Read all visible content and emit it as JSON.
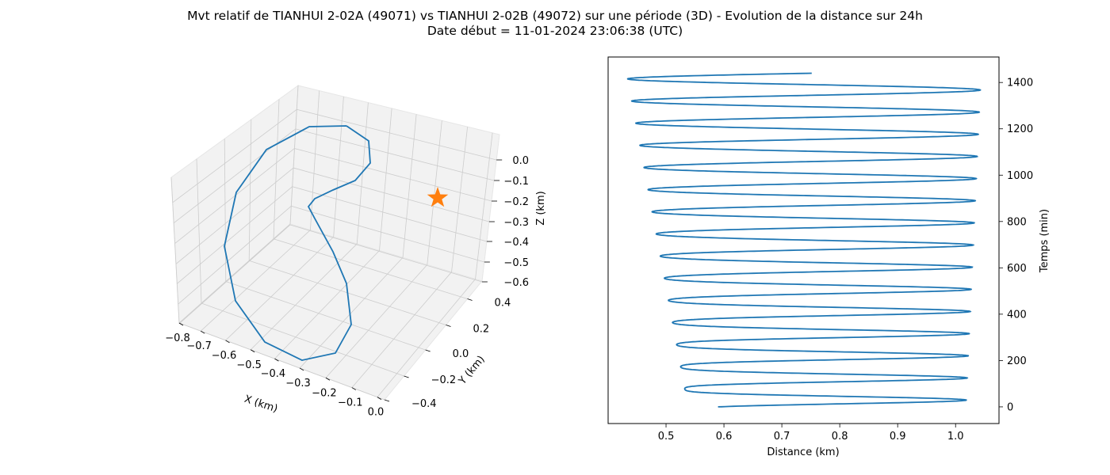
{
  "title_line1": "Mvt relatif de TIANHUI 2-02A (49071) vs TIANHUI 2-02B (49072) sur une période (3D) - Evolution de la distance sur 24h",
  "title_line2": "Date début = 11-01-2024 23:06:38 (UTC)",
  "colors": {
    "series": "#1f77b4",
    "marker": "#ff7f0e",
    "pane": "#f2f2f2",
    "grid": "#cccccc"
  },
  "chart_data": [
    {
      "type": "line",
      "projection": "3d",
      "xlabel": "X (km)",
      "ylabel": "Y (km)",
      "zlabel": "Z (km)",
      "xticks": [
        "−0.8",
        "−0.7",
        "−0.6",
        "−0.5",
        "−0.4",
        "−0.3",
        "−0.2",
        "−0.1",
        "0.0"
      ],
      "yticks": [
        "−0.4",
        "−0.2",
        "0.0",
        "0.2",
        "0.4"
      ],
      "zticks": [
        "0.0",
        "−0.1",
        "−0.2",
        "−0.3",
        "−0.4",
        "−0.5",
        "−0.6"
      ],
      "xlim": [
        -0.85,
        0.03
      ],
      "ylim": [
        -0.5,
        0.5
      ],
      "zlim": [
        -0.63,
        0.06
      ],
      "grid": true,
      "marker_point": {
        "x": 0.0,
        "y": 0.0,
        "z": 0.0,
        "symbol": "star"
      }
    },
    {
      "type": "line",
      "xlabel": "Distance (km)",
      "ylabel": "Temps (min)",
      "xticks": [
        "0.5",
        "0.6",
        "0.7",
        "0.8",
        "0.9",
        "1.0"
      ],
      "yticks": [
        "0",
        "200",
        "400",
        "600",
        "800",
        "1000",
        "1200",
        "1400"
      ],
      "xlim": [
        0.4,
        1.075
      ],
      "ylim": [
        -72,
        1510
      ],
      "yaxis_position": "right",
      "grid": false,
      "series": [
        {
          "period_min": 95.6,
          "t_end_min": 1440,
          "mean_start": 0.718,
          "mean_end": 0.738,
          "amp_start": 0.24,
          "amp_end": 0.306,
          "dip_start": 0.06,
          "dip_end": 0.0
        }
      ]
    }
  ]
}
